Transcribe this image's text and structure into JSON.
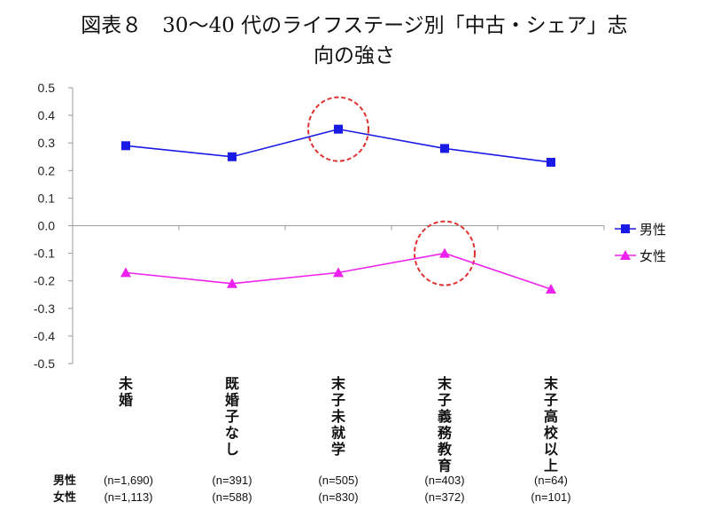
{
  "title_lines": [
    "図表８　30～40 代のライフステージ別「中古・シェア」志",
    "向の強さ"
  ],
  "chart_data": {
    "type": "line",
    "title": "図表８　30～40 代のライフステージ別「中古・シェア」志向の強さ",
    "categories": [
      "未婚",
      "既婚子なし",
      "末子未就学",
      "末子義務教育",
      "末子高校以上"
    ],
    "series": [
      {
        "name": "男性",
        "values": [
          0.29,
          0.25,
          0.35,
          0.28,
          0.23
        ],
        "color": "#1a1ae6",
        "marker": "square"
      },
      {
        "name": "女性",
        "values": [
          -0.17,
          -0.21,
          -0.17,
          -0.1,
          -0.23
        ],
        "color": "#ee22ee",
        "marker": "triangle"
      }
    ],
    "ylim": [
      -0.5,
      0.5
    ],
    "yticks": [
      "0.5",
      "0.4",
      "0.3",
      "0.2",
      "0.1",
      "0.0",
      "-0.1",
      "-0.2",
      "-0.3",
      "-0.4",
      "-0.5"
    ],
    "xlabel": "",
    "ylabel": "",
    "legend_position": "right",
    "grid": false,
    "highlight_circles": [
      {
        "series": "男性",
        "category": "末子未就学",
        "color": "#e03030"
      },
      {
        "series": "女性",
        "category": "末子義務教育",
        "color": "#e03030"
      }
    ],
    "sample_size_labels": {
      "rows": [
        "男性",
        "女性"
      ]
    },
    "sample_sizes": [
      [
        "(n=1,690)",
        "(n=391)",
        "(n=505)",
        "(n=403)",
        "(n=64)"
      ],
      [
        "(n=1,113)",
        "(n=588)",
        "(n=830)",
        "(n=372)",
        "(n=101)"
      ]
    ]
  }
}
